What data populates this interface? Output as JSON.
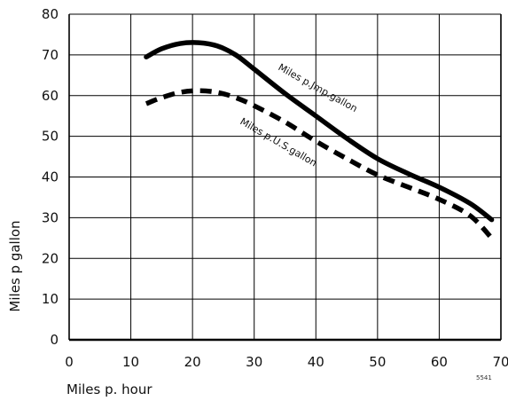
{
  "chart_data": {
    "type": "line",
    "xlabel": "Miles p. hour",
    "ylabel": "Miles p gallon",
    "xlim": [
      0,
      70
    ],
    "ylim": [
      0,
      80
    ],
    "x_ticks": [
      0,
      10,
      20,
      30,
      40,
      50,
      60,
      70
    ],
    "y_ticks": [
      0,
      10,
      20,
      30,
      40,
      50,
      60,
      70,
      80
    ],
    "grid": true,
    "series": [
      {
        "name": "Miles p.Jmp.gallon",
        "style": "solid",
        "x": [
          12.5,
          15,
          18,
          21,
          24,
          27,
          30,
          35,
          40,
          45,
          50,
          55,
          60,
          65,
          68.5
        ],
        "y": [
          69.5,
          71.5,
          72.8,
          73.0,
          72.2,
          70.0,
          66.5,
          60.5,
          55.0,
          49.5,
          44.5,
          40.8,
          37.5,
          33.5,
          29.5
        ]
      },
      {
        "name": "Miles p.U.S.gallon",
        "style": "dashed",
        "x": [
          12.5,
          15,
          18,
          21,
          24,
          27,
          30,
          35,
          40,
          45,
          50,
          55,
          60,
          65,
          68.5
        ],
        "y": [
          58.0,
          59.5,
          60.8,
          61.2,
          60.8,
          59.5,
          57.5,
          53.5,
          48.8,
          44.5,
          40.5,
          37.5,
          34.5,
          30.5,
          25.0
        ]
      }
    ],
    "annotations": [
      "5541"
    ]
  },
  "colors": {
    "line": "#000000",
    "grid": "#000000"
  }
}
